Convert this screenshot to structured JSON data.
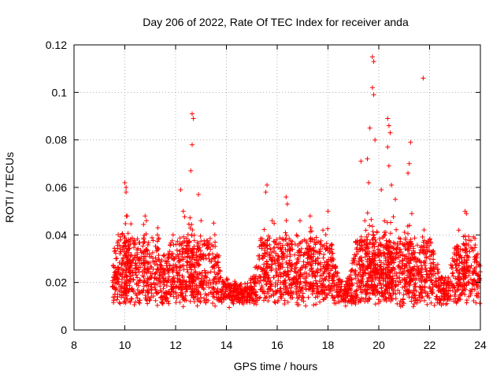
{
  "chart_data": {
    "type": "scatter",
    "title": "Day 206 of 2022, Rate Of TEC Index for receiver anda",
    "xlabel": "GPS time / hours",
    "ylabel": "ROTI / TECUs",
    "xlim": [
      8,
      24
    ],
    "ylim": [
      0,
      0.12
    ],
    "xticks": [
      "8",
      "10",
      "12",
      "14",
      "16",
      "18",
      "20",
      "22",
      "24"
    ],
    "yticks": [
      "0",
      "0.02",
      "0.04",
      "0.06",
      "0.08",
      "0.1",
      "0.12"
    ],
    "grid": true,
    "marker": "plus",
    "color": "#ff0000",
    "series": [
      {
        "name": "anda",
        "coverage_hours": [
          9.5,
          24.0
        ],
        "baseline_band_tecus": [
          0.005,
          0.02
        ],
        "peaks": [
          {
            "x": 9.65,
            "y": 0.03
          },
          {
            "x": 10.0,
            "y": 0.062
          },
          {
            "x": 10.05,
            "y": 0.06
          },
          {
            "x": 10.05,
            "y": 0.058
          },
          {
            "x": 10.1,
            "y": 0.048
          },
          {
            "x": 10.15,
            "y": 0.038
          },
          {
            "x": 10.8,
            "y": 0.048
          },
          {
            "x": 10.85,
            "y": 0.046
          },
          {
            "x": 11.3,
            "y": 0.043
          },
          {
            "x": 11.9,
            "y": 0.04
          },
          {
            "x": 12.2,
            "y": 0.059
          },
          {
            "x": 12.3,
            "y": 0.05
          },
          {
            "x": 12.65,
            "y": 0.091
          },
          {
            "x": 12.7,
            "y": 0.089
          },
          {
            "x": 12.65,
            "y": 0.078
          },
          {
            "x": 12.6,
            "y": 0.067
          },
          {
            "x": 12.9,
            "y": 0.057
          },
          {
            "x": 13.0,
            "y": 0.046
          },
          {
            "x": 13.5,
            "y": 0.045
          },
          {
            "x": 15.6,
            "y": 0.061
          },
          {
            "x": 15.55,
            "y": 0.058
          },
          {
            "x": 15.8,
            "y": 0.046
          },
          {
            "x": 16.35,
            "y": 0.056
          },
          {
            "x": 16.4,
            "y": 0.053
          },
          {
            "x": 16.9,
            "y": 0.046
          },
          {
            "x": 17.3,
            "y": 0.048
          },
          {
            "x": 17.8,
            "y": 0.042
          },
          {
            "x": 18.0,
            "y": 0.05
          },
          {
            "x": 19.3,
            "y": 0.071
          },
          {
            "x": 19.45,
            "y": 0.046
          },
          {
            "x": 19.55,
            "y": 0.072
          },
          {
            "x": 19.6,
            "y": 0.062
          },
          {
            "x": 19.65,
            "y": 0.085
          },
          {
            "x": 19.75,
            "y": 0.115
          },
          {
            "x": 19.8,
            "y": 0.113
          },
          {
            "x": 19.75,
            "y": 0.102
          },
          {
            "x": 19.8,
            "y": 0.099
          },
          {
            "x": 19.85,
            "y": 0.08
          },
          {
            "x": 20.1,
            "y": 0.059
          },
          {
            "x": 20.35,
            "y": 0.089
          },
          {
            "x": 20.4,
            "y": 0.086
          },
          {
            "x": 20.45,
            "y": 0.083
          },
          {
            "x": 20.35,
            "y": 0.077
          },
          {
            "x": 20.4,
            "y": 0.069
          },
          {
            "x": 20.5,
            "y": 0.061
          },
          {
            "x": 20.65,
            "y": 0.055
          },
          {
            "x": 21.25,
            "y": 0.079
          },
          {
            "x": 21.2,
            "y": 0.07
          },
          {
            "x": 21.15,
            "y": 0.066
          },
          {
            "x": 21.3,
            "y": 0.049
          },
          {
            "x": 21.75,
            "y": 0.106
          },
          {
            "x": 22.05,
            "y": 0.037
          },
          {
            "x": 23.15,
            "y": 0.042
          },
          {
            "x": 23.4,
            "y": 0.05
          },
          {
            "x": 23.45,
            "y": 0.049
          },
          {
            "x": 23.9,
            "y": 0.032
          }
        ]
      }
    ]
  }
}
